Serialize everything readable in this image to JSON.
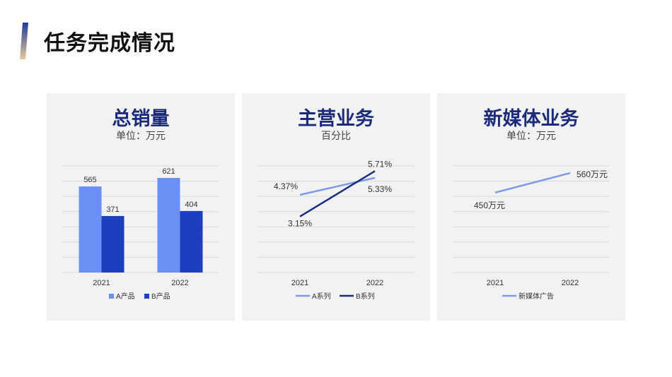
{
  "page": {
    "title": "任务完成情况"
  },
  "colors": {
    "accent_top": "#1f3a9e",
    "accent_bottom": "#e7c79a",
    "title": "#1c2a7a",
    "grid": "#d9d9d9",
    "card_bg": "#f2f2f2"
  },
  "chart_data": [
    {
      "type": "bar",
      "title": "总销量",
      "subtitle": "单位：万元",
      "categories": [
        "2021",
        "2022"
      ],
      "series": [
        {
          "name": "A产品",
          "values": [
            565,
            621
          ],
          "color": "#6a8ff5"
        },
        {
          "name": "B产品",
          "values": [
            371,
            404
          ],
          "color": "#1c3fbd"
        }
      ],
      "ylim": [
        0,
        700
      ],
      "grid": true,
      "legend": "bottom"
    },
    {
      "type": "line",
      "title": "主营业务",
      "subtitle": "百分比",
      "categories": [
        "2021",
        "2022"
      ],
      "series": [
        {
          "name": "A系列",
          "values": [
            4.37,
            5.33
          ],
          "labels": [
            "4.37%",
            "5.33%"
          ],
          "color": "#7b9be6"
        },
        {
          "name": "B系列",
          "values": [
            3.15,
            5.71
          ],
          "labels": [
            "3.15%",
            "5.71%"
          ],
          "color": "#1b2d80"
        }
      ],
      "ylim": [
        0,
        6
      ],
      "grid": true,
      "legend": "bottom"
    },
    {
      "type": "line",
      "title": "新媒体业务",
      "subtitle": "单位：万元",
      "categories": [
        "2021",
        "2022"
      ],
      "series": [
        {
          "name": "新媒体广告",
          "values": [
            450,
            560
          ],
          "labels": [
            "450万元",
            "560万元"
          ],
          "color": "#7b9be6"
        }
      ],
      "ylim": [
        0,
        600
      ],
      "grid": true,
      "legend": "bottom"
    }
  ]
}
